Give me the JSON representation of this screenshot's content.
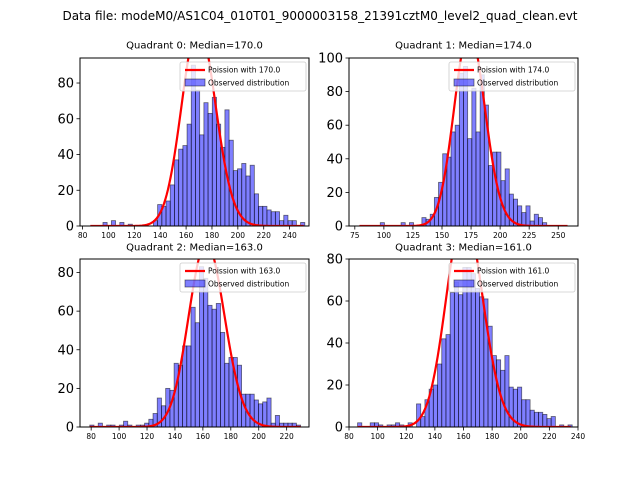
{
  "chart_data": {
    "type": "bar",
    "suptitle": "Data file: modeM0/AS1C04_010T01_9000003158_21391cztM0_level2_quad_clean.evt",
    "subplots": [
      {
        "title": "Quadrant 0: Median=170.0",
        "median": 170.0,
        "xlim": [
          78,
          255
        ],
        "ylim": [
          0,
          94
        ],
        "xticks": [
          80,
          100,
          120,
          140,
          160,
          180,
          200,
          220,
          240
        ],
        "yticks": [
          0,
          20,
          40,
          60,
          80
        ],
        "legend": [
          "Poission with 170.0",
          "Observed distribution"
        ],
        "legend_loc": "upper right",
        "bins": {
          "start": 86,
          "width": 3.25
        },
        "counts": [
          0,
          0,
          0,
          2,
          0,
          3,
          0,
          2,
          0,
          1,
          0,
          0,
          0,
          0,
          0,
          3,
          12,
          11,
          14,
          23,
          37,
          43,
          45,
          57,
          90,
          76,
          51,
          69,
          63,
          72,
          57,
          44,
          65,
          48,
          31,
          32,
          35,
          28,
          34,
          18,
          11,
          11,
          9,
          8,
          8,
          3,
          6,
          3,
          3,
          0,
          2
        ]
      },
      {
        "title": "Quadrant 1: Median=174.0",
        "median": 174.0,
        "xlim": [
          70,
          267
        ],
        "ylim": [
          0,
          100
        ],
        "xticks": [
          75,
          100,
          125,
          150,
          175,
          200,
          225,
          250
        ],
        "yticks": [
          0,
          20,
          40,
          60,
          80,
          100
        ],
        "legend": [
          "Poission with 174.0",
          "Observed distribution"
        ],
        "legend_loc": "upper right",
        "bins": {
          "start": 79,
          "width": 3.58
        },
        "counts": [
          0,
          0,
          0,
          0,
          0,
          2,
          0,
          0,
          0,
          0,
          2,
          0,
          2,
          0,
          0,
          5,
          4,
          7,
          17,
          26,
          43,
          41,
          56,
          60,
          91,
          95,
          52,
          82,
          56,
          90,
          72,
          36,
          44,
          44,
          27,
          34,
          19,
          16,
          12,
          8,
          12,
          3,
          7,
          5,
          2,
          0,
          0,
          0,
          0,
          0
        ]
      },
      {
        "title": "Quadrant 2: Median=163.0",
        "median": 163.0,
        "xlim": [
          72,
          236
        ],
        "ylim": [
          0,
          87
        ],
        "xticks": [
          80,
          100,
          120,
          140,
          160,
          180,
          200,
          220
        ],
        "yticks": [
          0,
          20,
          40,
          60,
          80
        ],
        "legend": [
          "Poission with 163.0",
          "Observed distribution"
        ],
        "legend_loc": "upper right",
        "bins": {
          "start": 79,
          "width": 3.02
        },
        "counts": [
          1,
          0,
          2,
          0,
          1,
          1,
          0,
          1,
          3,
          1,
          0,
          1,
          1,
          2,
          4,
          7,
          15,
          11,
          20,
          19,
          33,
          32,
          42,
          42,
          62,
          54,
          83,
          77,
          63,
          61,
          64,
          49,
          33,
          36,
          36,
          32,
          17,
          17,
          17,
          14,
          12,
          13,
          15,
          2,
          6,
          2,
          2,
          2,
          2,
          1
        ]
      },
      {
        "title": "Quadrant 3: Median=161.0",
        "median": 161.0,
        "xlim": [
          80,
          240
        ],
        "ylim": [
          0,
          80
        ],
        "xticks": [
          80,
          100,
          120,
          140,
          160,
          180,
          200,
          220,
          240
        ],
        "yticks": [
          0,
          20,
          40,
          60,
          80
        ],
        "legend": [
          "Poission with 161.0",
          "Observed distribution"
        ],
        "legend_loc": "upper right",
        "bins": {
          "start": 86,
          "width": 2.94
        },
        "counts": [
          2,
          0,
          0,
          2,
          2,
          1,
          0,
          1,
          1,
          2,
          1,
          0,
          2,
          0,
          11,
          5,
          13,
          18,
          20,
          30,
          42,
          44,
          64,
          69,
          63,
          76,
          76,
          73,
          66,
          62,
          61,
          48,
          34,
          32,
          27,
          34,
          19,
          18,
          19,
          13,
          13,
          8,
          7,
          7,
          6,
          4,
          5,
          0,
          1,
          0,
          1
        ]
      }
    ]
  }
}
